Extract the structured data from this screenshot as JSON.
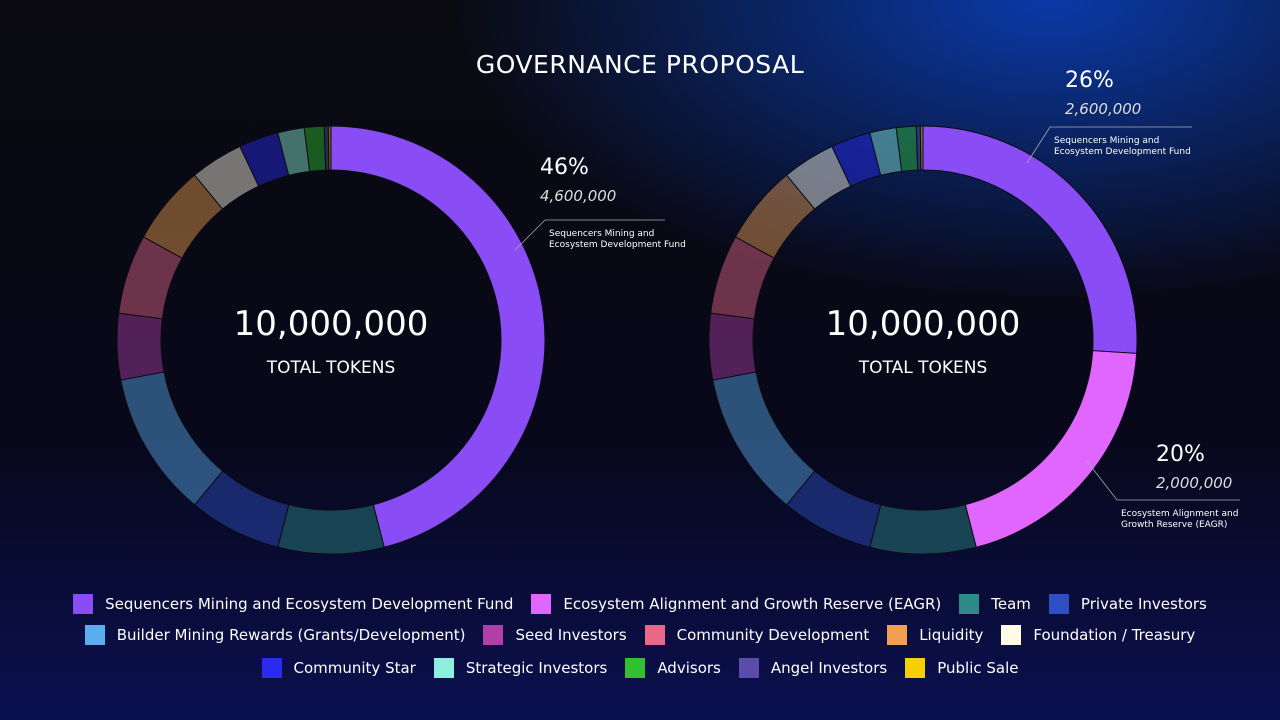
{
  "title": "GOVERNANCE PROPOSAL",
  "chart_data": [
    {
      "type": "pie",
      "donut": true,
      "center_value": "10,000,000",
      "center_label": "TOTAL TOKENS",
      "categories": [
        "Sequencers Mining and Ecosystem Development Fund",
        "Ecosystem Alignment and Growth Reserve (EAGR)",
        "Team",
        "Private Investors",
        "Builder Mining Rewards (Grants/Development)",
        "Seed Investors",
        "Community Development",
        "Liquidity",
        "Foundation / Treasury",
        "Community Star",
        "Strategic Investors",
        "Advisors",
        "Angel Investors",
        "Public Sale"
      ],
      "colors": [
        "#8a4cf5",
        "#e066ff",
        "#2e8a86",
        "#2e4fc4",
        "#5aaef0",
        "#b040a8",
        "#e8688a",
        "#f0a050",
        "#fffbe8",
        "#2a2af0",
        "#8ef0dc",
        "#30c030",
        "#5a4ca8",
        "#f5d000"
      ],
      "values": [
        46,
        0,
        8,
        7,
        11,
        5,
        6,
        6,
        4,
        3,
        2,
        1.5,
        0.3,
        0.2
      ],
      "annotations": [
        {
          "percent": "46%",
          "amount": "4,600,000",
          "label": "Sequencers Mining and Ecosystem Development Fund"
        }
      ]
    },
    {
      "type": "pie",
      "donut": true,
      "center_value": "10,000,000",
      "center_label": "TOTAL TOKENS",
      "categories": [
        "Sequencers Mining and Ecosystem Development Fund",
        "Ecosystem Alignment and Growth Reserve (EAGR)",
        "Team",
        "Private Investors",
        "Builder Mining Rewards (Grants/Development)",
        "Seed Investors",
        "Community Development",
        "Liquidity",
        "Foundation / Treasury",
        "Community Star",
        "Strategic Investors",
        "Advisors",
        "Angel Investors",
        "Public Sale"
      ],
      "colors": [
        "#8a4cf5",
        "#e066ff",
        "#2e8a86",
        "#2e4fc4",
        "#5aaef0",
        "#b040a8",
        "#e8688a",
        "#f0a050",
        "#fffbe8",
        "#2a2af0",
        "#8ef0dc",
        "#30c030",
        "#5a4ca8",
        "#f5d000"
      ],
      "values": [
        26,
        20,
        8,
        7,
        11,
        5,
        6,
        6,
        4,
        3,
        2,
        1.5,
        0.3,
        0.2
      ],
      "annotations": [
        {
          "percent": "26%",
          "amount": "2,600,000",
          "label": "Sequencers Mining and Ecosystem Development Fund"
        },
        {
          "percent": "20%",
          "amount": "2,000,000",
          "label": "Ecosystem Alignment and Growth Reserve (EAGR)"
        }
      ]
    }
  ]
}
